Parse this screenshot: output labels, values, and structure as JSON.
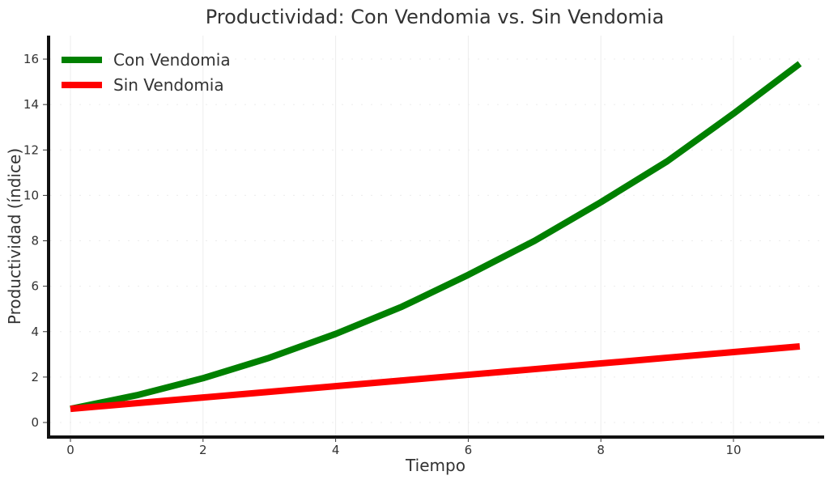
{
  "chart_data": {
    "type": "line",
    "title": "Productividad: Con Vendomia vs. Sin Vendomia",
    "xlabel": "Tiempo",
    "ylabel": "Productividad (índice)",
    "xlim": [
      -0.35,
      11.35
    ],
    "ylim": [
      -0.65,
      17
    ],
    "xticks": [
      0,
      2,
      4,
      6,
      8,
      10
    ],
    "yticks": [
      0,
      2,
      4,
      6,
      8,
      10,
      12,
      14,
      16
    ],
    "grid": true,
    "legend_position": "top-left",
    "x": [
      0,
      1,
      2,
      3,
      4,
      5,
      6,
      7,
      8,
      9,
      10,
      11
    ],
    "series": [
      {
        "name": "Con Vendomia",
        "color": "#008000",
        "values": [
          0.6,
          1.2,
          1.95,
          2.85,
          3.9,
          5.1,
          6.5,
          8.0,
          9.7,
          11.5,
          13.6,
          15.8
        ]
      },
      {
        "name": "Sin Vendomia",
        "color": "#ff0000",
        "values": [
          0.6,
          0.85,
          1.1,
          1.35,
          1.6,
          1.85,
          2.1,
          2.35,
          2.6,
          2.85,
          3.1,
          3.35
        ]
      }
    ]
  }
}
